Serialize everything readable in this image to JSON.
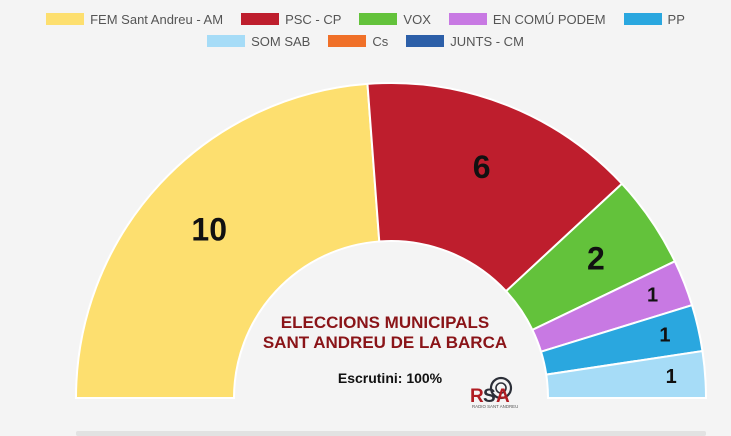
{
  "chart_data": {
    "type": "pie",
    "layout": "parliament-semicircle",
    "title": "ELECCIONS MUNICIPALS",
    "subtitle": "SANT ANDREU DE LA BARCA",
    "caption": "Escrutini: 100%",
    "legend_position": "top-center",
    "series": [
      {
        "name": "FEM Sant Andreu - AM",
        "value": 10,
        "color": "#fddf6f"
      },
      {
        "name": "PSC - CP",
        "value": 6,
        "color": "#be1e2d"
      },
      {
        "name": "VOX",
        "value": 2,
        "color": "#63c23b"
      },
      {
        "name": "EN COMÚ PODEM",
        "value": 1,
        "color": "#c879e3"
      },
      {
        "name": "PP",
        "value": 1,
        "color": "#2aa7df"
      },
      {
        "name": "SOM SAB",
        "value": 1,
        "color": "#a6dcf7"
      },
      {
        "name": "Cs",
        "value": 0,
        "color": "#f07028"
      },
      {
        "name": "JUNTS - CM",
        "value": 0,
        "color": "#2c5fa8"
      }
    ]
  },
  "logo": {
    "text": "RSA",
    "subtext": "RADIO SANT ANDREU"
  },
  "colors": {
    "title": "#8a1418",
    "background": "#f4f4f4",
    "separator": "#ffffff"
  }
}
